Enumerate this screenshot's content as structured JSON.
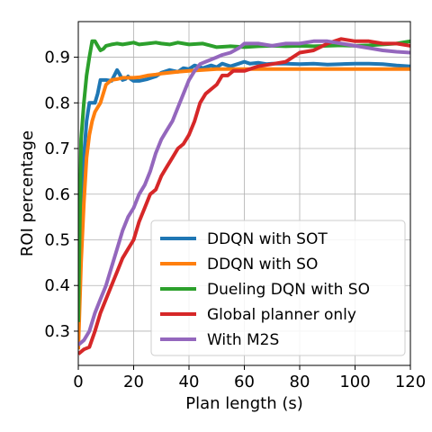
{
  "chart_data": {
    "type": "line",
    "title": "",
    "xlabel": "Plan length (s)",
    "ylabel": "ROI percentage",
    "xlim": [
      0,
      120
    ],
    "ylim": [
      0.225,
      0.978
    ],
    "xticks": [
      0,
      20,
      40,
      60,
      80,
      100,
      120
    ],
    "yticks": [
      0.3,
      0.4,
      0.5,
      0.6,
      0.7,
      0.8,
      0.9
    ],
    "xtick_labels": [
      "0",
      "20",
      "40",
      "60",
      "80",
      "100",
      "120"
    ],
    "ytick_labels": [
      "0.3",
      "0.4",
      "0.5",
      "0.6",
      "0.7",
      "0.8",
      "0.9"
    ],
    "grid": true,
    "legend_position": "lower-right",
    "series": [
      {
        "name": "DDQN with SOT",
        "color": "#1f77b4",
        "x": [
          0,
          1,
          2,
          3,
          4,
          5,
          6,
          7,
          8,
          9,
          10,
          12,
          13,
          14,
          15,
          16,
          17,
          18,
          19,
          20,
          22,
          25,
          28,
          30,
          33,
          36,
          38,
          40,
          42,
          45,
          48,
          50,
          52,
          55,
          58,
          60,
          62,
          65,
          68,
          70,
          75,
          80,
          85,
          90,
          95,
          100,
          105,
          110,
          115,
          120
        ],
        "y": [
          0.3,
          0.56,
          0.68,
          0.76,
          0.8,
          0.8,
          0.8,
          0.82,
          0.85,
          0.85,
          0.85,
          0.848,
          0.86,
          0.872,
          0.862,
          0.85,
          0.852,
          0.858,
          0.852,
          0.848,
          0.848,
          0.852,
          0.858,
          0.866,
          0.872,
          0.868,
          0.876,
          0.874,
          0.882,
          0.876,
          0.882,
          0.878,
          0.886,
          0.88,
          0.886,
          0.89,
          0.886,
          0.888,
          0.885,
          0.886,
          0.886,
          0.885,
          0.886,
          0.884,
          0.885,
          0.886,
          0.886,
          0.885,
          0.882,
          0.88
        ]
      },
      {
        "name": "DDQN with SO",
        "color": "#ff7f0e",
        "x": [
          0,
          1,
          2,
          3,
          4,
          5,
          6,
          7,
          8,
          9,
          10,
          11,
          12,
          14,
          16,
          18,
          20,
          22,
          25,
          28,
          30,
          33,
          36,
          40,
          45,
          50,
          55,
          60,
          70,
          80,
          90,
          100,
          110,
          120
        ],
        "y": [
          0.26,
          0.45,
          0.58,
          0.68,
          0.73,
          0.76,
          0.78,
          0.79,
          0.8,
          0.82,
          0.84,
          0.845,
          0.85,
          0.852,
          0.855,
          0.855,
          0.855,
          0.856,
          0.86,
          0.862,
          0.864,
          0.866,
          0.868,
          0.87,
          0.872,
          0.874,
          0.874,
          0.874,
          0.874,
          0.874,
          0.874,
          0.874,
          0.874,
          0.874
        ]
      },
      {
        "name": "Dueling DQN with SO",
        "color": "#2ca02c",
        "x": [
          0,
          1,
          2,
          3,
          4,
          5,
          6,
          7,
          8,
          9,
          10,
          12,
          14,
          16,
          18,
          20,
          22,
          25,
          28,
          30,
          33,
          36,
          40,
          45,
          50,
          55,
          60,
          65,
          70,
          75,
          80,
          85,
          90,
          95,
          100,
          105,
          110,
          115,
          120
        ],
        "y": [
          0.32,
          0.72,
          0.8,
          0.86,
          0.9,
          0.935,
          0.935,
          0.925,
          0.915,
          0.918,
          0.925,
          0.928,
          0.93,
          0.928,
          0.93,
          0.932,
          0.928,
          0.93,
          0.932,
          0.93,
          0.928,
          0.932,
          0.928,
          0.93,
          0.922,
          0.924,
          0.922,
          0.924,
          0.925,
          0.924,
          0.925,
          0.924,
          0.925,
          0.926,
          0.925,
          0.926,
          0.928,
          0.93,
          0.935
        ]
      },
      {
        "name": "Global planner only",
        "color": "#d62728",
        "x": [
          0,
          2,
          4,
          6,
          8,
          10,
          12,
          14,
          16,
          18,
          20,
          22,
          24,
          26,
          28,
          30,
          32,
          34,
          36,
          38,
          40,
          42,
          44,
          46,
          48,
          50,
          52,
          54,
          56,
          58,
          60,
          65,
          70,
          75,
          80,
          85,
          90,
          95,
          100,
          105,
          110,
          115,
          120
        ],
        "y": [
          0.25,
          0.26,
          0.265,
          0.3,
          0.34,
          0.37,
          0.4,
          0.43,
          0.46,
          0.48,
          0.5,
          0.54,
          0.57,
          0.6,
          0.61,
          0.64,
          0.66,
          0.68,
          0.7,
          0.71,
          0.73,
          0.76,
          0.8,
          0.82,
          0.83,
          0.84,
          0.86,
          0.86,
          0.87,
          0.87,
          0.87,
          0.88,
          0.885,
          0.89,
          0.91,
          0.915,
          0.93,
          0.94,
          0.935,
          0.935,
          0.93,
          0.93,
          0.925
        ]
      },
      {
        "name": "With M2S",
        "color": "#9467bd",
        "x": [
          0,
          2,
          4,
          6,
          8,
          10,
          12,
          14,
          16,
          18,
          20,
          22,
          24,
          26,
          28,
          30,
          32,
          34,
          36,
          38,
          40,
          42,
          44,
          46,
          48,
          50,
          52,
          55,
          58,
          60,
          65,
          70,
          75,
          80,
          85,
          90,
          95,
          100,
          105,
          110,
          115,
          120
        ],
        "y": [
          0.27,
          0.28,
          0.3,
          0.34,
          0.37,
          0.4,
          0.44,
          0.48,
          0.52,
          0.55,
          0.57,
          0.6,
          0.62,
          0.65,
          0.69,
          0.72,
          0.74,
          0.76,
          0.79,
          0.82,
          0.85,
          0.87,
          0.885,
          0.89,
          0.895,
          0.9,
          0.905,
          0.91,
          0.92,
          0.93,
          0.93,
          0.925,
          0.93,
          0.93,
          0.935,
          0.935,
          0.93,
          0.925,
          0.92,
          0.915,
          0.912,
          0.91
        ]
      }
    ]
  }
}
